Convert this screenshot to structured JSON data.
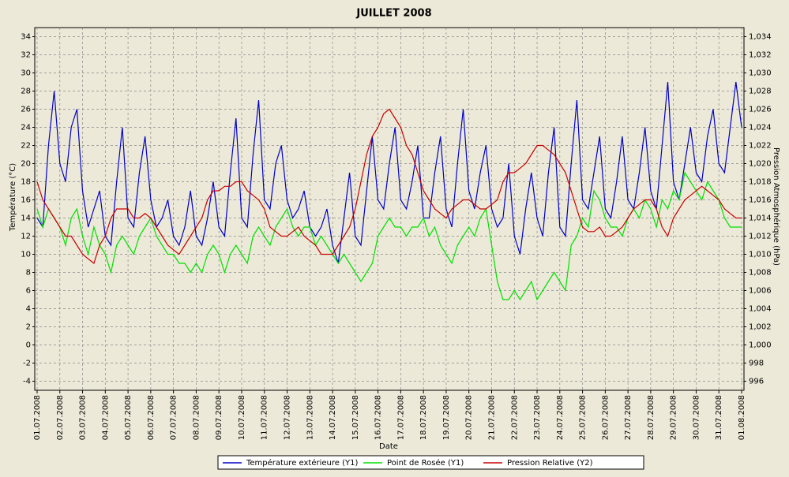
{
  "chart_data": {
    "type": "line",
    "title": "JUILLET  2008",
    "x_label": "Date",
    "y_label": "Température (°C)",
    "y2_label": "Pression Atmosphérique (hPa)",
    "categories": [
      "01.07.2008",
      null,
      null,
      null,
      "02.07.2008",
      null,
      null,
      null,
      "03.07.2008",
      null,
      null,
      null,
      "04.07.2008",
      null,
      null,
      null,
      "05.07.2008",
      null,
      null,
      null,
      "06.07.2008",
      null,
      null,
      null,
      "07.07.2008",
      null,
      null,
      null,
      "08.07.2008",
      null,
      null,
      null,
      "09.07.2008",
      null,
      null,
      null,
      "10.07.2008",
      null,
      null,
      null,
      "11.07.2008",
      null,
      null,
      null,
      "12.07.2008",
      null,
      null,
      null,
      "13.07.2008",
      null,
      null,
      null,
      "14.07.2008",
      null,
      null,
      null,
      "15.07.2008",
      null,
      null,
      null,
      "16.07.2008",
      null,
      null,
      null,
      "17.07.2008",
      null,
      null,
      null,
      "18.07.2008",
      null,
      null,
      null,
      "19.07.2008",
      null,
      null,
      null,
      "20.07.2008",
      null,
      null,
      null,
      "21.07.2008",
      null,
      null,
      null,
      "22.07.2008",
      null,
      null,
      null,
      "23.07.2008",
      null,
      null,
      null,
      "24.07.2008",
      null,
      null,
      null,
      "25.07.2008",
      null,
      null,
      null,
      "26.07.2008",
      null,
      null,
      null,
      "27.07.2008",
      null,
      null,
      null,
      "28.07.2008",
      null,
      null,
      null,
      "29.07.2008",
      null,
      null,
      null,
      "30.07.2008",
      null,
      null,
      null,
      "31.07.2008",
      null,
      null,
      null,
      "01.08.2008"
    ],
    "series": [
      {
        "name": "Température extérieure (Y1)",
        "color": "#0000c8",
        "axis": "y",
        "values": [
          14,
          13,
          22,
          28,
          20,
          18,
          24,
          26,
          17,
          13,
          15,
          17,
          12,
          11,
          18,
          24,
          14,
          13,
          19,
          23,
          16,
          13,
          14,
          16,
          12,
          11,
          13,
          17,
          12,
          11,
          14,
          18,
          13,
          12,
          19,
          25,
          14,
          13,
          21,
          27,
          16,
          15,
          20,
          22,
          16,
          14,
          15,
          17,
          13,
          12,
          13,
          15,
          11,
          9,
          14,
          19,
          12,
          11,
          17,
          23,
          16,
          15,
          20,
          24,
          16,
          15,
          18,
          22,
          14,
          14,
          19,
          23,
          15,
          13,
          20,
          26,
          17,
          15,
          19,
          22,
          15,
          13,
          14,
          20,
          12,
          10,
          15,
          19,
          14,
          12,
          19,
          24,
          13,
          12,
          20,
          27,
          16,
          15,
          19,
          23,
          15,
          14,
          18,
          23,
          16,
          15,
          19,
          24,
          17,
          15,
          22,
          29,
          18,
          16,
          20,
          24,
          19,
          18,
          23,
          26,
          20,
          19,
          24,
          29,
          24
        ]
      },
      {
        "name": "Point de Rosée (Y1)",
        "color": "#00e000",
        "axis": "y",
        "values": [
          15,
          13,
          15,
          14,
          13,
          11,
          14,
          15,
          12,
          10,
          13,
          11,
          10,
          8,
          11,
          12,
          11,
          10,
          12,
          13,
          14,
          12,
          11,
          10,
          10,
          9,
          9,
          8,
          9,
          8,
          10,
          11,
          10,
          8,
          10,
          11,
          10,
          9,
          12,
          13,
          12,
          11,
          13,
          14,
          15,
          13,
          12,
          13,
          13,
          11,
          12,
          11,
          10,
          9,
          10,
          9,
          8,
          7,
          8,
          9,
          12,
          13,
          14,
          13,
          13,
          12,
          13,
          13,
          14,
          12,
          13,
          11,
          10,
          9,
          11,
          12,
          13,
          12,
          14,
          15,
          11,
          7,
          5,
          5,
          6,
          5,
          6,
          7,
          5,
          6,
          7,
          8,
          7,
          6,
          11,
          12,
          14,
          13,
          17,
          16,
          14,
          13,
          13,
          12,
          14,
          15,
          14,
          16,
          15,
          13,
          16,
          15,
          17,
          16,
          19,
          18,
          17,
          16,
          18,
          17,
          16,
          14,
          13,
          13,
          13
        ]
      },
      {
        "name": "Pression Relative (Y2)",
        "color": "#c80000",
        "axis": "y2",
        "values": [
          1018,
          1016,
          1015,
          1014,
          1013,
          1012,
          1012,
          1011,
          1010,
          1009.5,
          1009,
          1011,
          1012,
          1014,
          1015,
          1015,
          1015,
          1014,
          1014,
          1014.5,
          1014,
          1013,
          1012,
          1011,
          1010.5,
          1010,
          1011,
          1012,
          1013,
          1014,
          1016,
          1017,
          1017,
          1017.5,
          1017.5,
          1018,
          1018,
          1017,
          1016.5,
          1016,
          1015,
          1013,
          1012.5,
          1012,
          1012,
          1012.5,
          1013,
          1012,
          1011.5,
          1011,
          1010,
          1010,
          1010,
          1011,
          1012,
          1013,
          1015,
          1018,
          1021,
          1023,
          1024,
          1025.5,
          1026,
          1025,
          1024,
          1022,
          1021,
          1019,
          1017,
          1016,
          1015,
          1014.5,
          1014,
          1015,
          1015.5,
          1016,
          1016,
          1015.5,
          1015,
          1015,
          1015.5,
          1016,
          1018,
          1019,
          1019,
          1019.5,
          1020,
          1021,
          1022,
          1022,
          1021.5,
          1021,
          1020,
          1019,
          1017,
          1015,
          1013,
          1012.5,
          1012.5,
          1013,
          1012,
          1012,
          1012.5,
          1013,
          1014,
          1015,
          1015.5,
          1016,
          1016,
          1015,
          1013,
          1012,
          1014,
          1015,
          1016,
          1016.5,
          1017,
          1017.5,
          1017,
          1016.5,
          1016,
          1015,
          1014.5,
          1014,
          1014
        ]
      }
    ],
    "ylim": [
      -5,
      35
    ],
    "yticks": [
      -4,
      -2,
      0,
      2,
      4,
      6,
      8,
      10,
      12,
      14,
      16,
      18,
      20,
      22,
      24,
      26,
      28,
      30,
      32,
      34
    ],
    "y2lim": [
      995,
      1035
    ],
    "y2ticks": [
      996,
      998,
      {
        "value": 1000,
        "label": "1,000"
      },
      {
        "value": 1002,
        "label": "1,002"
      },
      {
        "value": 1004,
        "label": "1,004"
      },
      {
        "value": 1006,
        "label": "1,006"
      },
      {
        "value": 1008,
        "label": "1,008"
      },
      {
        "value": 1010,
        "label": "1,010"
      },
      {
        "value": 1012,
        "label": "1,012"
      },
      {
        "value": 1014,
        "label": "1,014"
      },
      {
        "value": 1016,
        "label": "1,016"
      },
      {
        "value": 1018,
        "label": "1,018"
      },
      {
        "value": 1020,
        "label": "1,020"
      },
      {
        "value": 1022,
        "label": "1,022"
      },
      {
        "value": 1024,
        "label": "1,024"
      },
      {
        "value": 1026,
        "label": "1,026"
      },
      {
        "value": 1028,
        "label": "1,028"
      },
      {
        "value": 1030,
        "label": "1,030"
      },
      {
        "value": 1032,
        "label": "1,032"
      },
      {
        "value": 1034,
        "label": "1,034"
      }
    ],
    "grid": true,
    "legend": "bottom"
  }
}
